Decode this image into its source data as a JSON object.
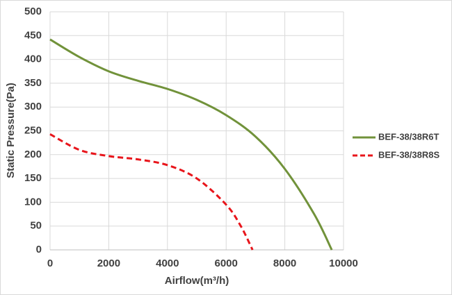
{
  "chart_data": {
    "type": "line",
    "x_label": "Airflow(m³/h)",
    "y_label": "Static Pressure(Pa)",
    "xlim": [
      0,
      10000
    ],
    "xticks": [
      0,
      2000,
      4000,
      6000,
      8000,
      10000
    ],
    "ylim": [
      0,
      500
    ],
    "yticks": [
      0,
      50,
      100,
      150,
      200,
      250,
      300,
      350,
      400,
      450,
      500
    ],
    "grid": true,
    "legend": "right",
    "series": [
      {
        "name": "BEF-38/38R6T",
        "color": "#71923a",
        "dash": false,
        "x": [
          0,
          1000,
          2000,
          3000,
          4000,
          5000,
          6000,
          7000,
          8000,
          9000,
          9600
        ],
        "values": [
          442,
          405,
          375,
          355,
          338,
          315,
          283,
          238,
          170,
          75,
          0
        ]
      },
      {
        "name": "BEF-38/38R8S",
        "color": "#e8151b",
        "dash": true,
        "x": [
          0,
          1000,
          2000,
          3000,
          4000,
          5000,
          6000,
          6500,
          6900
        ],
        "values": [
          243,
          210,
          197,
          190,
          178,
          150,
          95,
          50,
          0
        ]
      }
    ]
  }
}
